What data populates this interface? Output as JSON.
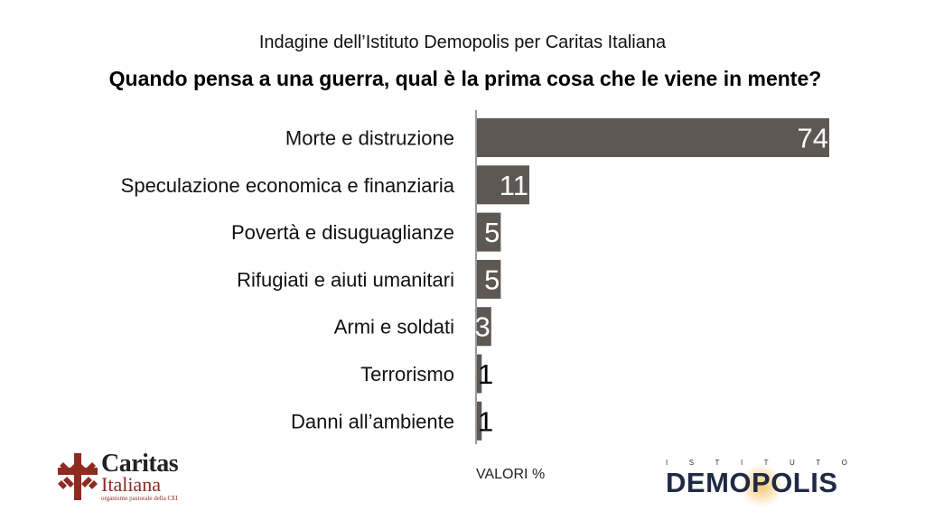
{
  "header": {
    "subtitle": "Indagine dell’Istituto Demopolis per Caritas Italiana",
    "title": "Quando pensa a una guerra, qual è la prima cosa che le viene in mente?"
  },
  "chart_data": {
    "type": "bar",
    "orientation": "horizontal",
    "title": "Quando pensa a una guerra, qual è la prima cosa che le viene in mente?",
    "subtitle": "Indagine dell’Istituto Demopolis per Caritas Italiana",
    "categories": [
      "Morte e distruzione",
      "Speculazione economica e finanziaria",
      "Povertà e disuguaglianze",
      "Rifugiati e aiuti umanitari",
      "Armi e soldati",
      "Terrorismo",
      "Danni all’ambiente"
    ],
    "values": [
      74,
      11,
      5,
      5,
      3,
      1,
      1
    ],
    "unit_note": "VALORI %",
    "xlim": [
      0,
      100
    ],
    "grid": false,
    "legend": "none",
    "bar_color": "#5d5853"
  },
  "footer": {
    "unit_note": "VALORI %",
    "caritas": {
      "name": "Caritas",
      "sub": "Italiana",
      "tagline": "organismo pastorale della CEI",
      "cross_color": "#8e2a21"
    },
    "demopolis": {
      "top": "ISTITUTO",
      "main_before": "DEM",
      "main_o": "O",
      "main_after": "POLIS",
      "color": "#1f2a44"
    }
  }
}
